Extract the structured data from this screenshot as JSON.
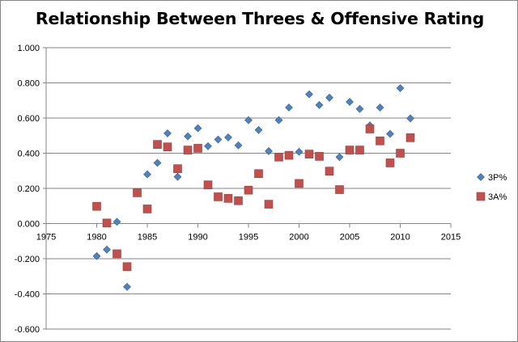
{
  "chart_data": {
    "type": "scatter",
    "title": "Relationship Between Threes & Offensive Rating",
    "xlabel": "",
    "ylabel": "",
    "xlim": [
      1975,
      2015
    ],
    "ylim": [
      -0.6,
      1.0
    ],
    "x_ticks": [
      "1975",
      "1980",
      "1985",
      "1990",
      "1995",
      "2000",
      "2005",
      "2010",
      "2015"
    ],
    "y_ticks": [
      "-0.600",
      "-0.400",
      "-0.200",
      "0.000",
      "0.200",
      "0.400",
      "0.600",
      "0.800",
      "1.000"
    ],
    "grid": "horizontal",
    "legend_position": "right",
    "series": [
      {
        "name": "3P%",
        "marker": "diamond",
        "color": "#4F81BD",
        "points": [
          [
            1980,
            -0.185
          ],
          [
            1981,
            -0.148
          ],
          [
            1982,
            0.01
          ],
          [
            1983,
            -0.36
          ],
          [
            1985,
            0.28
          ],
          [
            1986,
            0.345
          ],
          [
            1987,
            0.513
          ],
          [
            1988,
            0.266
          ],
          [
            1989,
            0.496
          ],
          [
            1990,
            0.542
          ],
          [
            1991,
            0.44
          ],
          [
            1992,
            0.478
          ],
          [
            1993,
            0.49
          ],
          [
            1994,
            0.445
          ],
          [
            1995,
            0.588
          ],
          [
            1996,
            0.532
          ],
          [
            1997,
            0.412
          ],
          [
            1998,
            0.588
          ],
          [
            1999,
            0.66
          ],
          [
            2000,
            0.408
          ],
          [
            2001,
            0.735
          ],
          [
            2002,
            0.674
          ],
          [
            2003,
            0.716
          ],
          [
            2004,
            0.378
          ],
          [
            2005,
            0.692
          ],
          [
            2006,
            0.652
          ],
          [
            2007,
            0.558
          ],
          [
            2008,
            0.66
          ],
          [
            2009,
            0.51
          ],
          [
            2010,
            0.77
          ],
          [
            2011,
            0.598
          ]
        ]
      },
      {
        "name": "3A%",
        "marker": "square",
        "color": "#C0504D",
        "points": [
          [
            1980,
            0.098
          ],
          [
            1981,
            0.003
          ],
          [
            1982,
            -0.172
          ],
          [
            1983,
            -0.245
          ],
          [
            1984,
            0.175
          ],
          [
            1985,
            0.083
          ],
          [
            1986,
            0.45
          ],
          [
            1987,
            0.436
          ],
          [
            1988,
            0.312
          ],
          [
            1989,
            0.418
          ],
          [
            1990,
            0.428
          ],
          [
            1991,
            0.22
          ],
          [
            1992,
            0.152
          ],
          [
            1993,
            0.143
          ],
          [
            1994,
            0.13
          ],
          [
            1995,
            0.19
          ],
          [
            1996,
            0.284
          ],
          [
            1997,
            0.11
          ],
          [
            1998,
            0.378
          ],
          [
            1999,
            0.388
          ],
          [
            2000,
            0.228
          ],
          [
            2001,
            0.395
          ],
          [
            2002,
            0.382
          ],
          [
            2003,
            0.298
          ],
          [
            2004,
            0.193
          ],
          [
            2005,
            0.418
          ],
          [
            2006,
            0.418
          ],
          [
            2007,
            0.538
          ],
          [
            2008,
            0.47
          ],
          [
            2009,
            0.345
          ],
          [
            2010,
            0.4
          ],
          [
            2011,
            0.488
          ]
        ]
      }
    ]
  }
}
